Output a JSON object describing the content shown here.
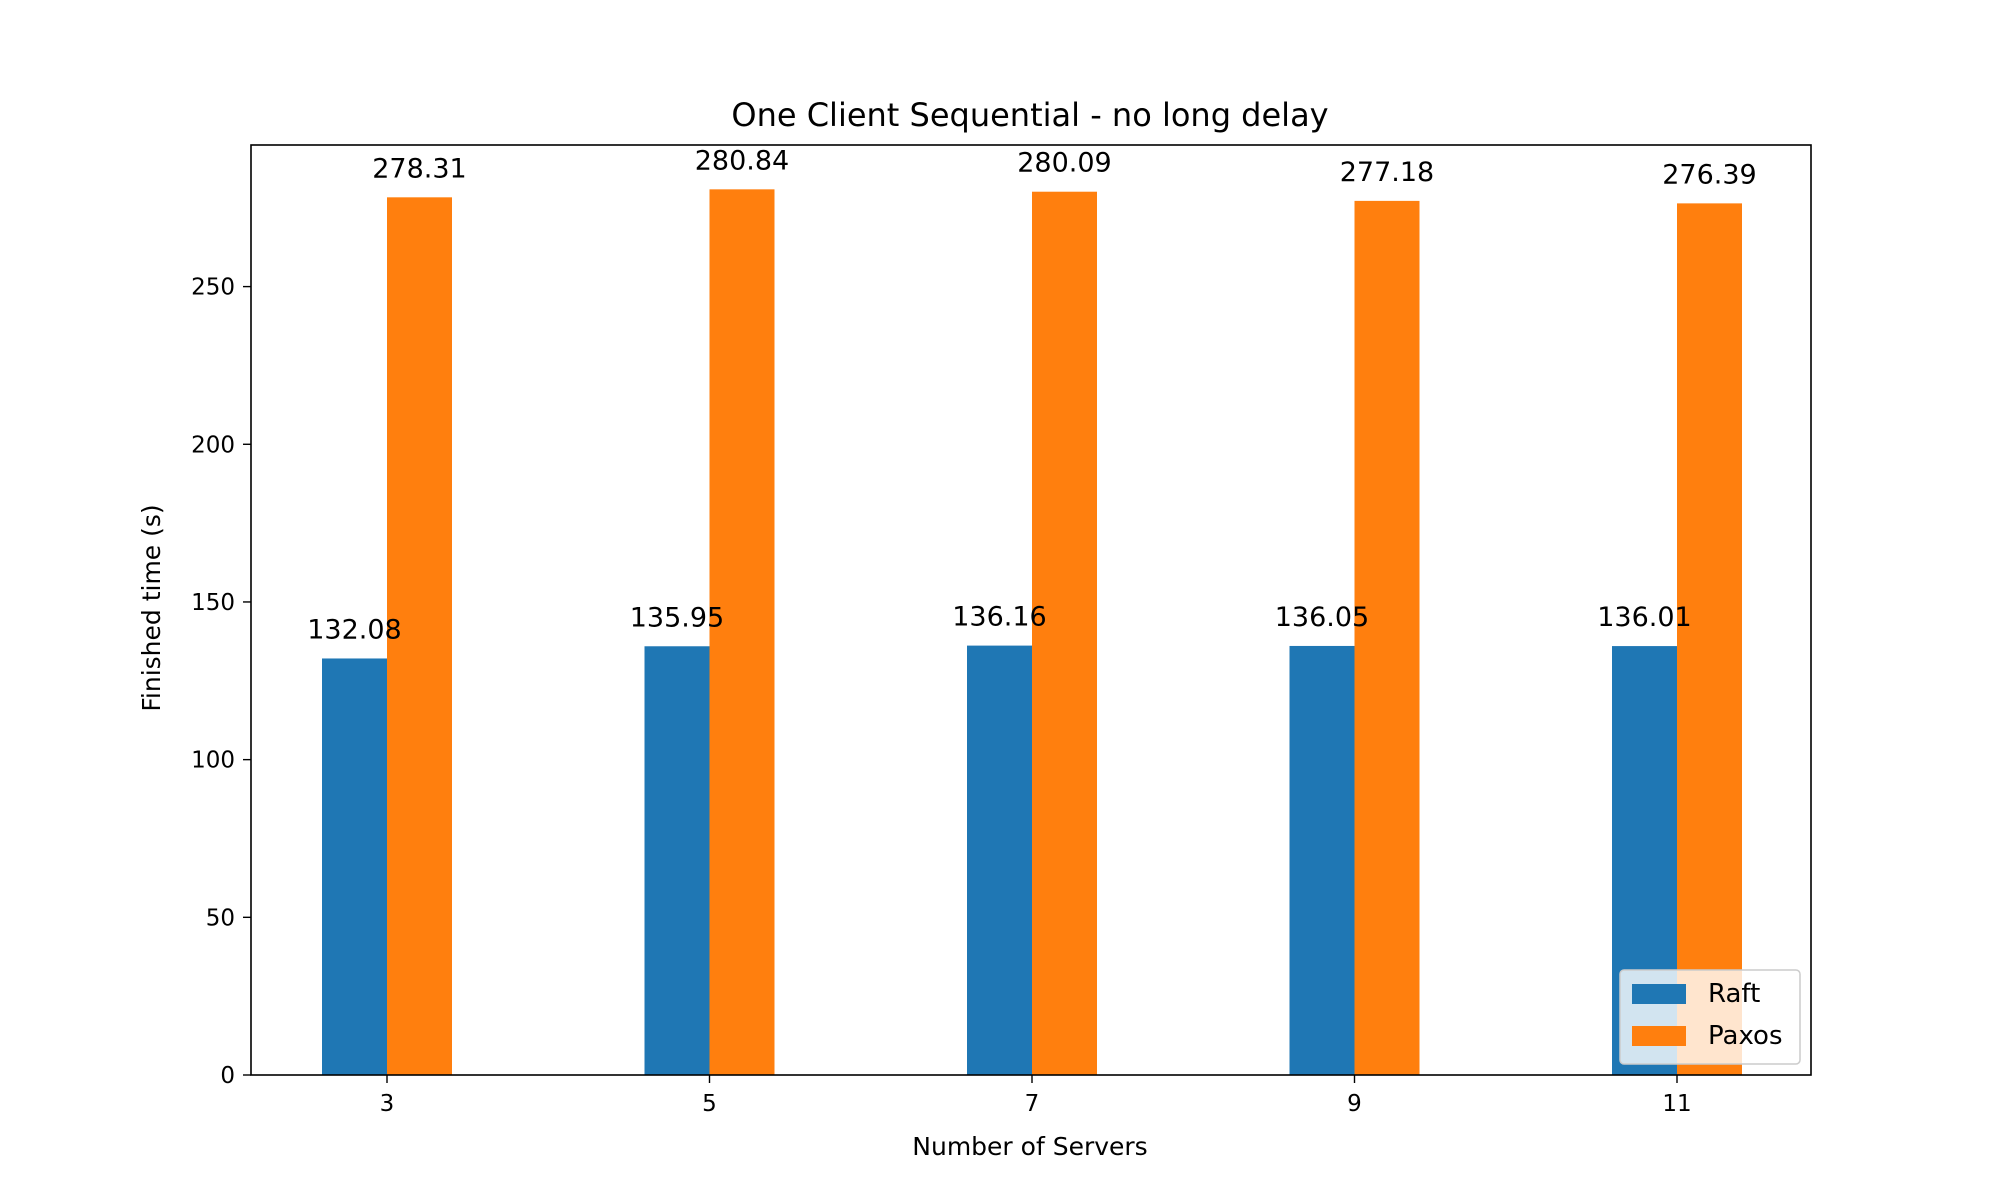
{
  "chart_data": {
    "type": "bar",
    "title": "One Client Sequential - no long delay",
    "xlabel": "Number of Servers",
    "ylabel": "Finished time (s)",
    "categories": [
      "3",
      "5",
      "7",
      "9",
      "11"
    ],
    "series": [
      {
        "name": "Raft",
        "color": "#1f77b4",
        "values": [
          132.08,
          135.95,
          136.16,
          136.05,
          136.01
        ],
        "labels": [
          "132.08",
          "135.95",
          "136.16",
          "136.05",
          "136.01"
        ]
      },
      {
        "name": "Paxos",
        "color": "#ff7f0e",
        "values": [
          278.31,
          280.84,
          280.09,
          277.18,
          276.39
        ],
        "labels": [
          "278.31",
          "280.84",
          "280.09",
          "277.18",
          "276.39"
        ]
      }
    ],
    "ylim": [
      0,
      294.9
    ],
    "yticks": [
      0,
      50,
      100,
      150,
      200,
      250
    ],
    "legend": "lower-right",
    "grid": false
  }
}
